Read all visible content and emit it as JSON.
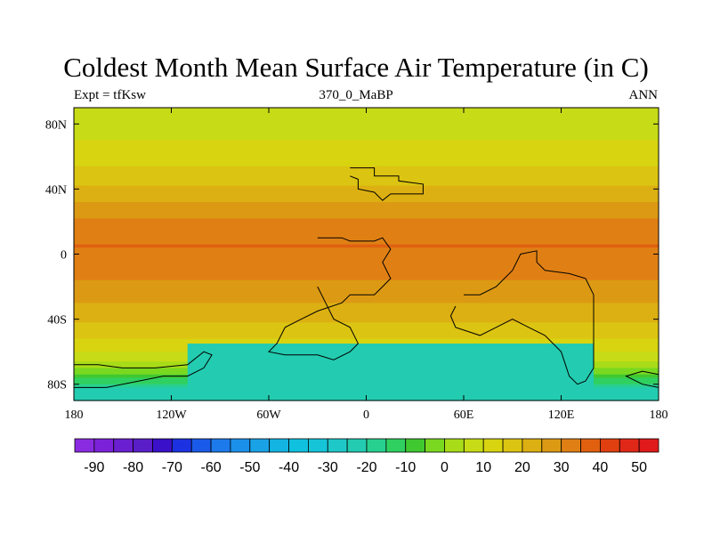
{
  "chart_data": {
    "type": "heatmap",
    "title": "Coldest Month Mean Surface Air Temperature (in C)",
    "subtitle_left": "Expt = tfKsw",
    "subtitle_center": "370_0_MaBP",
    "subtitle_right": "ANN",
    "x_range": [
      -180,
      180
    ],
    "y_range": [
      -90,
      90
    ],
    "x_ticks": [
      {
        "value": -180,
        "label": "180"
      },
      {
        "value": -120,
        "label": "120W"
      },
      {
        "value": -60,
        "label": "60W"
      },
      {
        "value": 0,
        "label": "0"
      },
      {
        "value": 60,
        "label": "60E"
      },
      {
        "value": 120,
        "label": "120E"
      },
      {
        "value": 180,
        "label": "180"
      }
    ],
    "y_ticks": [
      {
        "value": 80,
        "label": "80N"
      },
      {
        "value": 40,
        "label": "40N"
      },
      {
        "value": 0,
        "label": "0"
      },
      {
        "value": -40,
        "label": "40S"
      },
      {
        "value": -80,
        "label": "80S"
      }
    ],
    "colorbar": {
      "levels": [
        -95,
        -90,
        -85,
        -80,
        -75,
        -70,
        -65,
        -60,
        -55,
        -50,
        -45,
        -40,
        -35,
        -30,
        -25,
        -20,
        -15,
        -10,
        -5,
        0,
        5,
        10,
        15,
        20,
        25,
        30,
        35,
        40,
        45,
        50,
        55
      ],
      "labels": [
        "-90",
        "-80",
        "-70",
        "-60",
        "-50",
        "-40",
        "-30",
        "-20",
        "-10",
        "0",
        "10",
        "20",
        "30",
        "40",
        "50"
      ],
      "colors": [
        "#8a2be2",
        "#7b22d8",
        "#6a1fd0",
        "#5a1ec8",
        "#3a10c8",
        "#1c32e0",
        "#1a5ae8",
        "#1d7aeb",
        "#1b90ea",
        "#1aa2e6",
        "#14b4e2",
        "#10c0df",
        "#16c4d8",
        "#1fc8c8",
        "#23ccb0",
        "#28d090",
        "#30d060",
        "#40c830",
        "#7ad820",
        "#a8dc18",
        "#c7dc16",
        "#d8d410",
        "#dcc412",
        "#dcb012",
        "#dc9a14",
        "#e08014",
        "#e06010",
        "#e04010",
        "#e02818",
        "#e01a1a"
      ]
    },
    "zonal_temperature_profile": [
      {
        "lat": 90,
        "temp": 8
      },
      {
        "lat": 80,
        "temp": 8
      },
      {
        "lat": 70,
        "temp": 10
      },
      {
        "lat": 60,
        "temp": 12
      },
      {
        "lat": 50,
        "temp": 17
      },
      {
        "lat": 42,
        "temp": 20
      },
      {
        "lat": 35,
        "temp": 24
      },
      {
        "lat": 25,
        "temp": 28
      },
      {
        "lat": 15,
        "temp": 33
      },
      {
        "lat": 5,
        "temp": 35
      },
      {
        "lat": 0,
        "temp": 32
      },
      {
        "lat": -5,
        "temp": 33
      },
      {
        "lat": -15,
        "temp": 30
      },
      {
        "lat": -25,
        "temp": 27
      },
      {
        "lat": -35,
        "temp": 23
      },
      {
        "lat": -45,
        "temp": 18
      },
      {
        "lat": -55,
        "temp": 13
      },
      {
        "lat": -62,
        "temp": 8
      },
      {
        "lat": -70,
        "temp": 0
      },
      {
        "lat": -75,
        "temp": -7
      },
      {
        "lat": -82,
        "temp": -20
      },
      {
        "lat": -90,
        "temp": -22
      }
    ],
    "gondwana_anomaly": {
      "lon_range": [
        -110,
        140
      ],
      "lat_range": [
        -90,
        -55
      ],
      "temp": -23
    },
    "coastlines": [
      {
        "name": "northern-continent",
        "lonlat": [
          [
            -10,
            53
          ],
          [
            5,
            53
          ],
          [
            5,
            48
          ],
          [
            20,
            48
          ],
          [
            20,
            45
          ],
          [
            35,
            43
          ],
          [
            35,
            37
          ],
          [
            15,
            37
          ],
          [
            10,
            33
          ],
          [
            5,
            38
          ],
          [
            -5,
            40
          ],
          [
            -5,
            46
          ],
          [
            -10,
            48
          ]
        ]
      },
      {
        "name": "central-continent",
        "lonlat": [
          [
            -30,
            10
          ],
          [
            -15,
            10
          ],
          [
            -10,
            8
          ],
          [
            5,
            8
          ],
          [
            10,
            10
          ],
          [
            15,
            3
          ],
          [
            10,
            -5
          ],
          [
            15,
            -15
          ],
          [
            10,
            -20
          ],
          [
            5,
            -25
          ],
          [
            -10,
            -25
          ],
          [
            -15,
            -30
          ],
          [
            -30,
            -35
          ],
          [
            -40,
            -40
          ],
          [
            -50,
            -45
          ],
          [
            -55,
            -55
          ],
          [
            -60,
            -60
          ],
          [
            -50,
            -62
          ],
          [
            -30,
            -62
          ],
          [
            -20,
            -65
          ],
          [
            -10,
            -60
          ],
          [
            -5,
            -55
          ],
          [
            -10,
            -45
          ],
          [
            -20,
            -40
          ],
          [
            -25,
            -30
          ],
          [
            -30,
            -20
          ]
        ]
      },
      {
        "name": "eastern-continent",
        "lonlat": [
          [
            60,
            -25
          ],
          [
            70,
            -25
          ],
          [
            80,
            -20
          ],
          [
            90,
            -10
          ],
          [
            95,
            0
          ],
          [
            105,
            2
          ],
          [
            105,
            -5
          ],
          [
            110,
            -10
          ],
          [
            125,
            -12
          ],
          [
            135,
            -15
          ],
          [
            140,
            -25
          ],
          [
            140,
            -40
          ],
          [
            140,
            -70
          ],
          [
            135,
            -78
          ],
          [
            130,
            -80
          ],
          [
            125,
            -75
          ],
          [
            120,
            -60
          ],
          [
            115,
            -55
          ],
          [
            110,
            -50
          ],
          [
            100,
            -45
          ],
          [
            90,
            -40
          ],
          [
            80,
            -45
          ],
          [
            70,
            -50
          ],
          [
            55,
            -45
          ],
          [
            52,
            -38
          ],
          [
            55,
            -32
          ]
        ]
      },
      {
        "name": "south-west-coast",
        "lonlat": [
          [
            -180,
            -68
          ],
          [
            -165,
            -68
          ],
          [
            -150,
            -70
          ],
          [
            -130,
            -70
          ],
          [
            -110,
            -68
          ],
          [
            -100,
            -60
          ],
          [
            -95,
            -62
          ],
          [
            -100,
            -70
          ],
          [
            -110,
            -75
          ],
          [
            -125,
            -75
          ],
          [
            -140,
            -78
          ],
          [
            -160,
            -82
          ],
          [
            -180,
            -82
          ]
        ]
      },
      {
        "name": "south-east-coast",
        "lonlat": [
          [
            180,
            -82
          ],
          [
            170,
            -80
          ],
          [
            160,
            -75
          ],
          [
            170,
            -72
          ],
          [
            180,
            -74
          ]
        ]
      }
    ]
  }
}
